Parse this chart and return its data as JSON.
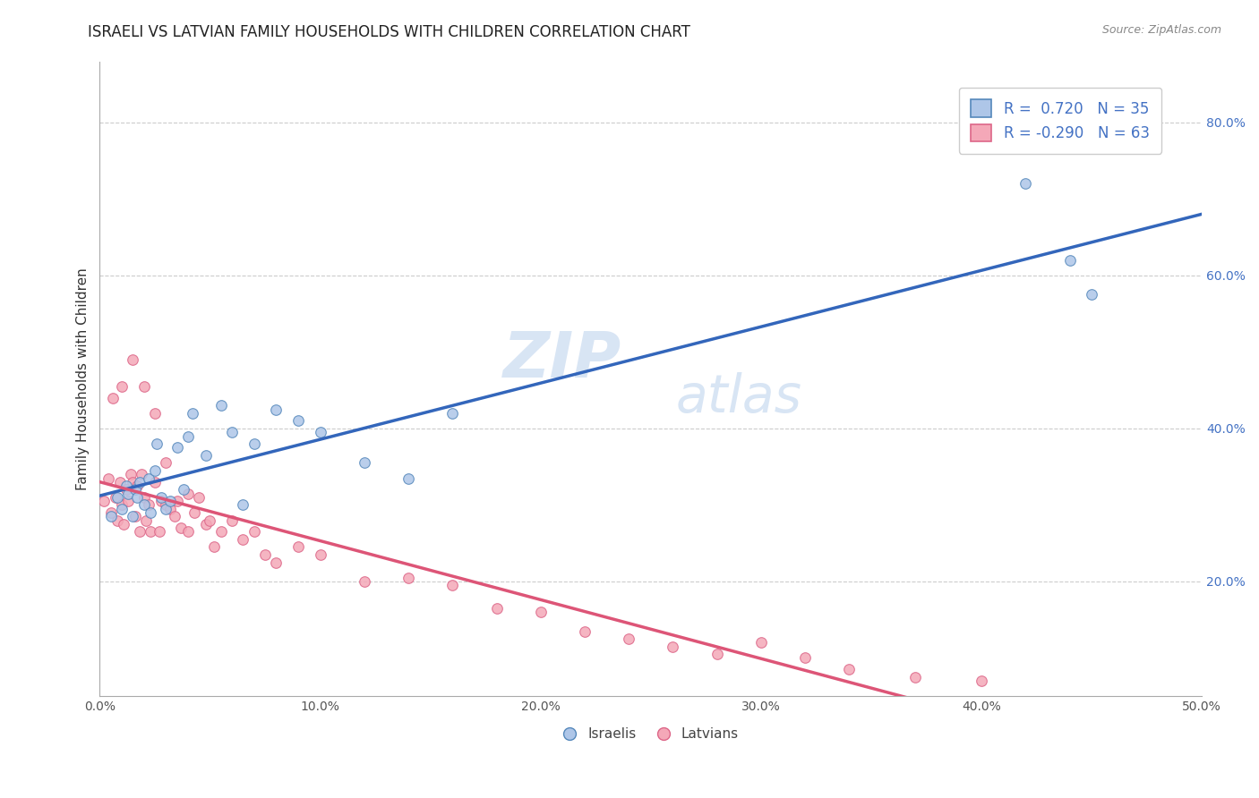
{
  "title": "ISRAELI VS LATVIAN FAMILY HOUSEHOLDS WITH CHILDREN CORRELATION CHART",
  "source": "Source: ZipAtlas.com",
  "ylabel": "Family Households with Children",
  "legend_entries": [
    {
      "label": "R =  0.720   N = 35",
      "color": "#aec6e8"
    },
    {
      "label": "R = -0.290   N = 63",
      "color": "#f4a8b8"
    }
  ],
  "legend_labels": [
    "Israelis",
    "Latvians"
  ],
  "xlim": [
    0.0,
    0.5
  ],
  "ylim": [
    0.05,
    0.88
  ],
  "x_ticks": [
    0.0,
    0.1,
    0.2,
    0.3,
    0.4,
    0.5
  ],
  "x_tick_labels": [
    "0.0%",
    "10.0%",
    "20.0%",
    "30.0%",
    "40.0%",
    "50.0%"
  ],
  "y_ticks": [
    0.2,
    0.4,
    0.6,
    0.8
  ],
  "y_tick_labels": [
    "20.0%",
    "40.0%",
    "60.0%",
    "80.0%"
  ],
  "grid_color": "#cccccc",
  "israeli_color": "#aec6e8",
  "latvian_color": "#f4a8b8",
  "israeli_edge": "#5588bb",
  "latvian_edge": "#dd6688",
  "trend_israeli_color": "#3366bb",
  "trend_latvian_color": "#dd5577",
  "israelis_x": [
    0.005,
    0.008,
    0.01,
    0.012,
    0.013,
    0.015,
    0.016,
    0.017,
    0.018,
    0.02,
    0.022,
    0.023,
    0.025,
    0.026,
    0.028,
    0.03,
    0.032,
    0.035,
    0.038,
    0.04,
    0.042,
    0.048,
    0.055,
    0.06,
    0.065,
    0.07,
    0.08,
    0.09,
    0.1,
    0.12,
    0.14,
    0.16,
    0.42,
    0.44,
    0.45
  ],
  "israelis_y": [
    0.285,
    0.31,
    0.295,
    0.325,
    0.315,
    0.285,
    0.32,
    0.31,
    0.33,
    0.3,
    0.335,
    0.29,
    0.345,
    0.38,
    0.31,
    0.295,
    0.305,
    0.375,
    0.32,
    0.39,
    0.42,
    0.365,
    0.43,
    0.395,
    0.3,
    0.38,
    0.425,
    0.41,
    0.395,
    0.355,
    0.335,
    0.42,
    0.72,
    0.62,
    0.575
  ],
  "latvians_x": [
    0.002,
    0.004,
    0.005,
    0.006,
    0.007,
    0.008,
    0.009,
    0.01,
    0.01,
    0.011,
    0.012,
    0.013,
    0.014,
    0.015,
    0.015,
    0.016,
    0.017,
    0.018,
    0.019,
    0.02,
    0.02,
    0.021,
    0.022,
    0.023,
    0.025,
    0.025,
    0.027,
    0.028,
    0.03,
    0.03,
    0.032,
    0.034,
    0.035,
    0.037,
    0.04,
    0.04,
    0.043,
    0.045,
    0.048,
    0.05,
    0.052,
    0.055,
    0.06,
    0.065,
    0.07,
    0.075,
    0.08,
    0.09,
    0.1,
    0.12,
    0.14,
    0.16,
    0.18,
    0.2,
    0.22,
    0.24,
    0.26,
    0.28,
    0.3,
    0.32,
    0.34,
    0.37,
    0.4
  ],
  "latvians_y": [
    0.305,
    0.335,
    0.29,
    0.44,
    0.31,
    0.28,
    0.33,
    0.455,
    0.3,
    0.275,
    0.32,
    0.305,
    0.34,
    0.49,
    0.33,
    0.285,
    0.325,
    0.265,
    0.34,
    0.455,
    0.31,
    0.28,
    0.3,
    0.265,
    0.42,
    0.33,
    0.265,
    0.305,
    0.355,
    0.3,
    0.295,
    0.285,
    0.305,
    0.27,
    0.315,
    0.265,
    0.29,
    0.31,
    0.275,
    0.28,
    0.245,
    0.265,
    0.28,
    0.255,
    0.265,
    0.235,
    0.225,
    0.245,
    0.235,
    0.2,
    0.205,
    0.195,
    0.165,
    0.16,
    0.135,
    0.125,
    0.115,
    0.105,
    0.12,
    0.1,
    0.085,
    0.075,
    0.07
  ],
  "title_fontsize": 12,
  "axis_label_fontsize": 11,
  "tick_fontsize": 10,
  "marker_size": 70,
  "background_color": "#ffffff"
}
